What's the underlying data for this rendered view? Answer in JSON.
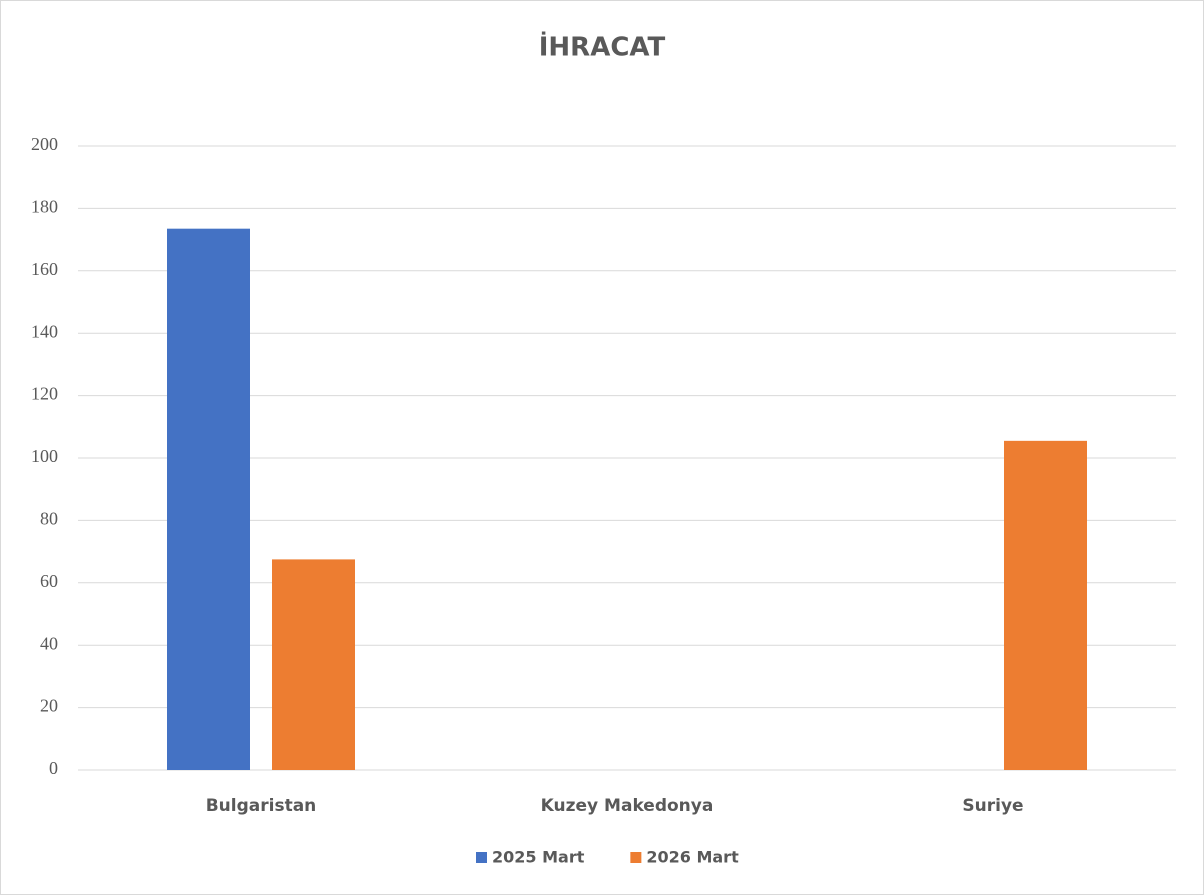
{
  "chart_data": {
    "type": "bar",
    "title": "İHRACAT",
    "categories": [
      "Bulgaristan",
      "Kuzey Makedonya",
      "Suriye"
    ],
    "series": [
      {
        "name": "2025 Mart",
        "color": "#4472c4",
        "values": [
          173.5,
          0,
          0
        ]
      },
      {
        "name": "2026 Mart",
        "color": "#ed7d31",
        "values": [
          67.5,
          0,
          105.5
        ]
      }
    ],
    "ylim": [
      0,
      200
    ],
    "yticks": [
      0,
      20,
      40,
      60,
      80,
      100,
      120,
      140,
      160,
      180,
      200
    ],
    "grid": true,
    "legend": "bottom"
  }
}
